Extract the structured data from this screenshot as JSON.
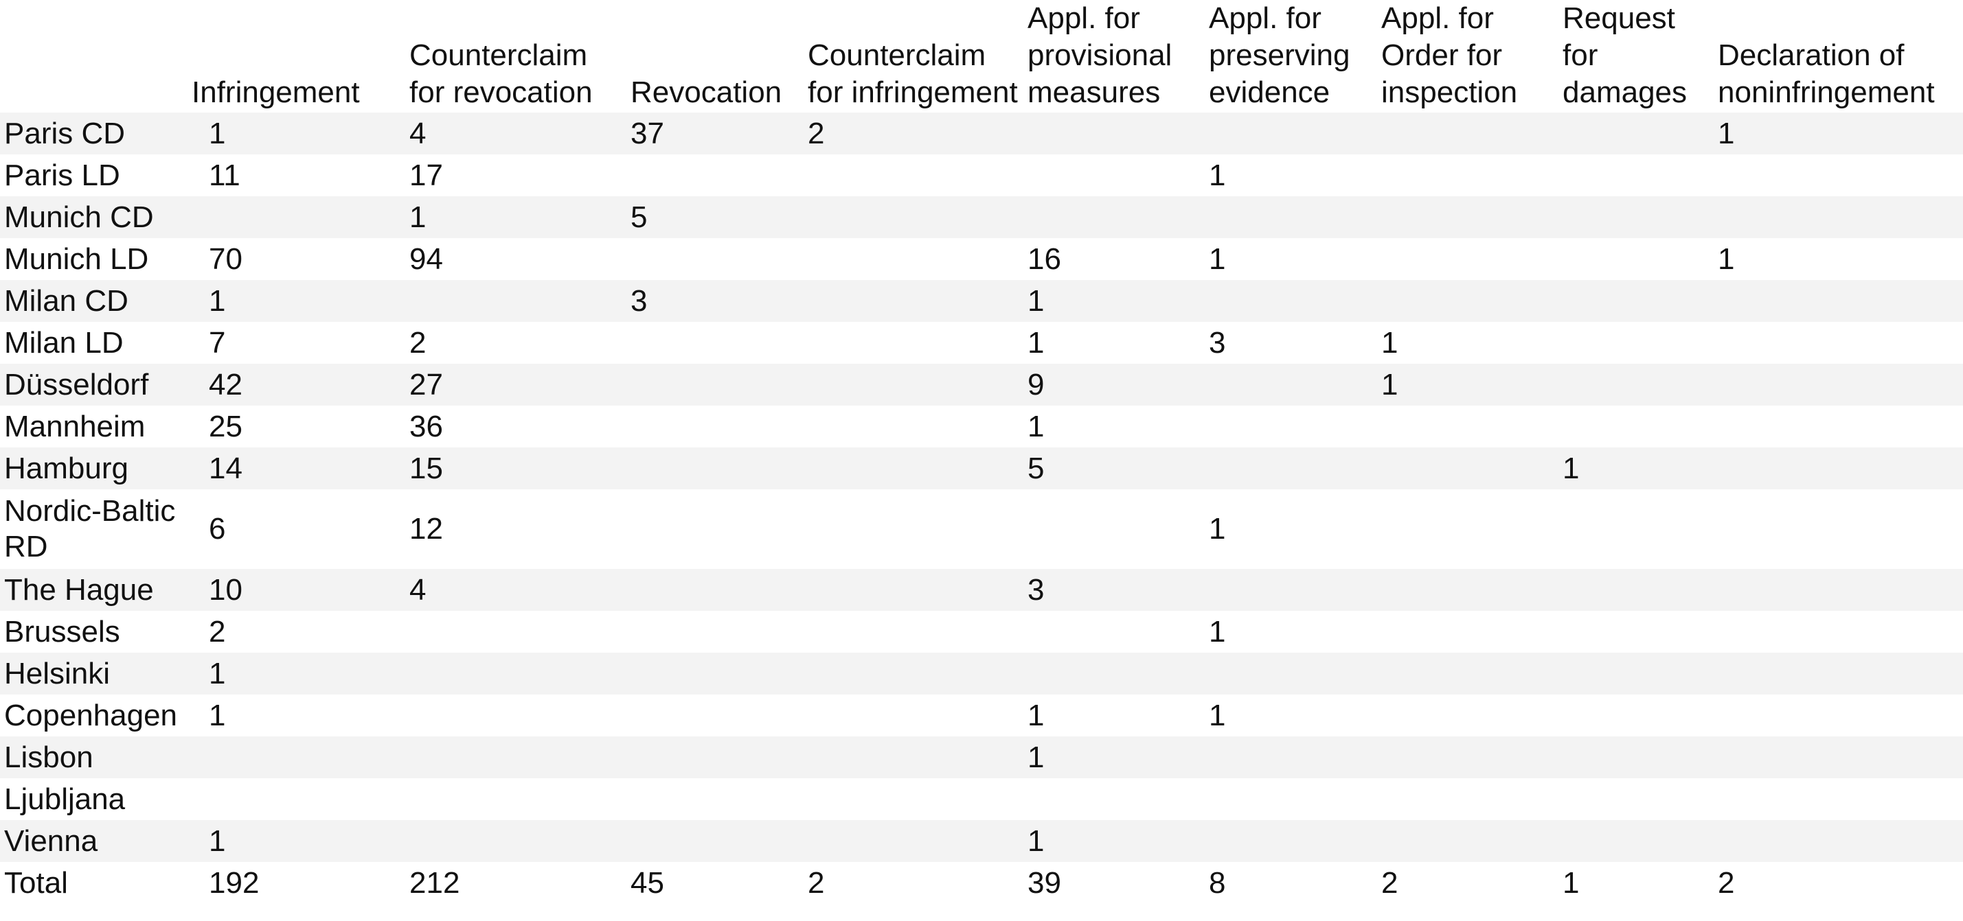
{
  "chart_data": {
    "type": "table",
    "columns": [
      "",
      "Infringement",
      "Counterclaim for revocation",
      "Revocation",
      "Counterclaim for infringement",
      "Appl. for provisional measures",
      "Appl. for preserving evidence",
      "Appl. for Order for inspection",
      "Request for damages",
      "Declaration of noninfringement"
    ],
    "rows": [
      [
        "Paris CD",
        "1",
        "4",
        "37",
        "2",
        "",
        "",
        "",
        "",
        "1"
      ],
      [
        "Paris LD",
        "11",
        "17",
        "",
        "",
        "",
        "1",
        "",
        "",
        ""
      ],
      [
        "Munich CD",
        "",
        "1",
        "5",
        "",
        "",
        "",
        "",
        "",
        ""
      ],
      [
        "Munich LD",
        "70",
        "94",
        "",
        "",
        "16",
        "1",
        "",
        "",
        "1"
      ],
      [
        "Milan CD",
        "1",
        "",
        "3",
        "",
        "1",
        "",
        "",
        "",
        ""
      ],
      [
        "Milan LD",
        "7",
        "2",
        "",
        "",
        "1",
        "3",
        "1",
        "",
        ""
      ],
      [
        "Düsseldorf",
        "42",
        "27",
        "",
        "",
        "9",
        "",
        "1",
        "",
        ""
      ],
      [
        "Mannheim",
        "25",
        "36",
        "",
        "",
        "1",
        "",
        "",
        "",
        ""
      ],
      [
        "Hamburg",
        "14",
        "15",
        "",
        "",
        "5",
        "",
        "",
        "1",
        ""
      ],
      [
        "Nordic-Baltic RD",
        "6",
        "12",
        "",
        "",
        "",
        "1",
        "",
        "",
        ""
      ],
      [
        "The Hague",
        "10",
        "4",
        "",
        "",
        "3",
        "",
        "",
        "",
        ""
      ],
      [
        "Brussels",
        "2",
        "",
        "",
        "",
        "",
        "1",
        "",
        "",
        ""
      ],
      [
        "Helsinki",
        "1",
        "",
        "",
        "",
        "",
        "",
        "",
        "",
        ""
      ],
      [
        "Copenhagen",
        "1",
        "",
        "",
        "",
        "1",
        "1",
        "",
        "",
        ""
      ],
      [
        "Lisbon",
        "",
        "",
        "",
        "",
        "1",
        "",
        "",
        "",
        ""
      ],
      [
        "Ljubljana",
        "",
        "",
        "",
        "",
        "",
        "",
        "",
        "",
        ""
      ],
      [
        "Vienna",
        "1",
        "",
        "",
        "",
        "1",
        "",
        "",
        "",
        ""
      ]
    ],
    "total": [
      "Total",
      "192",
      "212",
      "45",
      "2",
      "39",
      "8",
      "2",
      "1",
      "2"
    ]
  },
  "colors": {
    "row_stripe": "#f3f3f3",
    "text": "#111111",
    "background": "#ffffff"
  }
}
